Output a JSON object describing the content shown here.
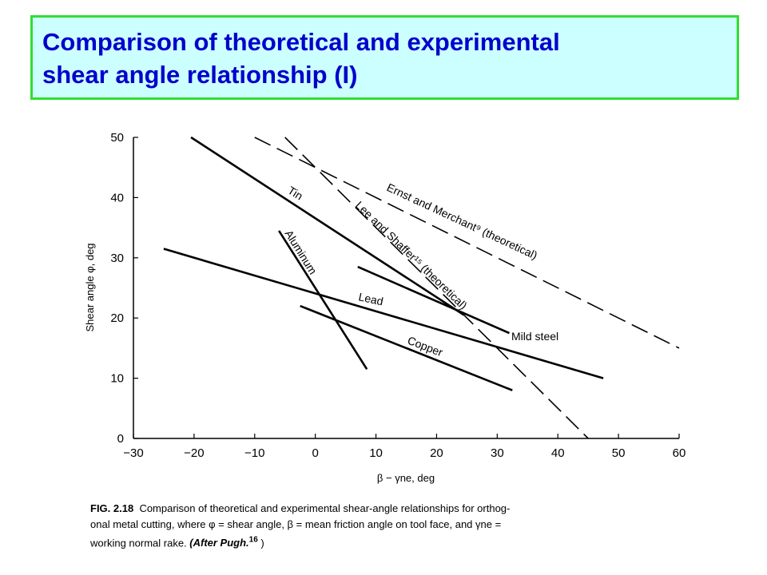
{
  "slide": {
    "title_line1": "Comparison of theoretical and experimental",
    "title_line2": "shear angle relationship (I)"
  },
  "chart_data": {
    "type": "line",
    "xlabel": "β − γne, deg",
    "ylabel": "Shear angle φ, deg",
    "xlim": [
      -30,
      60
    ],
    "ylim": [
      0,
      50
    ],
    "xticks": [
      -30,
      -20,
      -10,
      0,
      10,
      20,
      30,
      40,
      50,
      60
    ],
    "yticks": [
      0,
      10,
      20,
      30,
      40,
      50
    ],
    "xtick_labels": [
      "−30",
      "−20",
      "−10",
      "0",
      "10",
      "20",
      "30",
      "40",
      "50",
      "60"
    ],
    "ytick_labels": [
      "0",
      "10",
      "20",
      "30",
      "40",
      "50"
    ],
    "grid": false,
    "series": [
      {
        "name": "Ernst and Merchant⁹ (theoretical)",
        "dash": "dashed",
        "x": [
          -10,
          60
        ],
        "y": [
          50,
          15
        ]
      },
      {
        "name": "Lee and Shaffer¹⁵ (theoretical)",
        "dash": "dashed",
        "x": [
          -5,
          45
        ],
        "y": [
          50,
          0
        ]
      },
      {
        "name": "Tin",
        "dash": "solid",
        "x": [
          -20.5,
          24.5
        ],
        "y": [
          50,
          20.5
        ]
      },
      {
        "name": "Aluminum",
        "dash": "solid",
        "x": [
          -6,
          8.5
        ],
        "y": [
          34.5,
          11.5
        ]
      },
      {
        "name": "Lead",
        "dash": "solid",
        "x": [
          -25,
          47.5
        ],
        "y": [
          31.5,
          10
        ]
      },
      {
        "name": "Copper",
        "dash": "solid",
        "x": [
          -2.5,
          32.5
        ],
        "y": [
          22,
          8
        ]
      },
      {
        "name": "Mild steel",
        "dash": "solid",
        "x": [
          7,
          32
        ],
        "y": [
          28.5,
          17.5
        ]
      }
    ]
  },
  "caption": {
    "fig": "FIG. 2.18",
    "line1": "Comparison of theoretical and experimental shear-angle relationships for orthog-",
    "line2": "onal metal cutting, where φ = shear angle, β = mean friction angle on tool face, and γne =",
    "line3": "working normal rake.",
    "after": "(After Pugh.",
    "after_sup": "16",
    "after_close": ")"
  }
}
